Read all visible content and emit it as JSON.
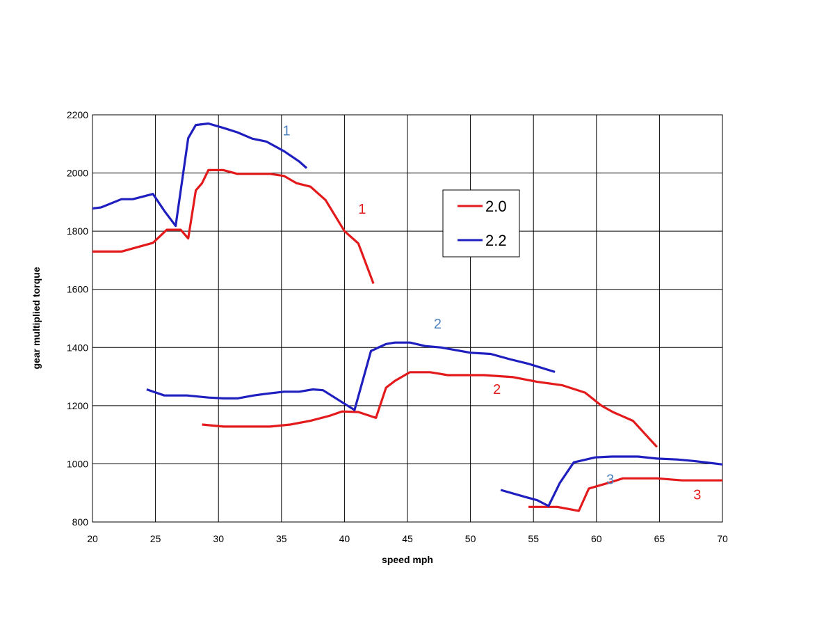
{
  "chart_data": {
    "type": "line",
    "xlabel": "speed mph",
    "ylabel": "gear multiplied torque",
    "xlim": [
      20,
      70
    ],
    "ylim": [
      800,
      2200
    ],
    "x_ticks": [
      "20",
      "25",
      "30",
      "35",
      "40",
      "45",
      "50",
      "55",
      "60",
      "65",
      "70"
    ],
    "y_ticks": [
      "800",
      "1000",
      "1200",
      "1400",
      "1600",
      "1800",
      "2000",
      "2200"
    ],
    "grid": true,
    "legend_placement": "center",
    "series": [
      {
        "name": "2.0",
        "color": "#e31a1c",
        "segments": [
          {
            "gear": "1",
            "points": [
              [
                20,
                1730
              ],
              [
                22.3,
                1730
              ],
              [
                24.8,
                1760
              ],
              [
                25.9,
                1805
              ],
              [
                27,
                1805
              ],
              [
                27.6,
                1775
              ],
              [
                28.2,
                1940
              ],
              [
                28.7,
                1965
              ],
              [
                29.2,
                2010
              ],
              [
                30.4,
                2010
              ],
              [
                31.5,
                1997
              ],
              [
                32.8,
                1997
              ],
              [
                34.1,
                1997
              ],
              [
                35.2,
                1990
              ],
              [
                36.2,
                1965
              ],
              [
                37.3,
                1953
              ],
              [
                38.5,
                1907
              ],
              [
                40,
                1800
              ],
              [
                41.1,
                1758
              ],
              [
                42.3,
                1620
              ]
            ]
          },
          {
            "gear": "2",
            "points": [
              [
                28.7,
                1135
              ],
              [
                30.4,
                1128
              ],
              [
                32,
                1128
              ],
              [
                34.1,
                1128
              ],
              [
                35.7,
                1135
              ],
              [
                37.3,
                1148
              ],
              [
                38.8,
                1165
              ],
              [
                39.8,
                1180
              ],
              [
                41.1,
                1178
              ],
              [
                42.5,
                1158
              ],
              [
                43.3,
                1262
              ],
              [
                44,
                1285
              ],
              [
                45.2,
                1315
              ],
              [
                46.8,
                1315
              ],
              [
                48.2,
                1305
              ],
              [
                51.1,
                1305
              ],
              [
                53.4,
                1298
              ],
              [
                55.3,
                1282
              ],
              [
                57.3,
                1270
              ],
              [
                59.1,
                1245
              ],
              [
                60.4,
                1200
              ],
              [
                61.3,
                1178
              ],
              [
                62.9,
                1148
              ],
              [
                64.8,
                1058
              ]
            ]
          },
          {
            "gear": "3",
            "points": [
              [
                54.6,
                852
              ],
              [
                56.9,
                852
              ],
              [
                58.6,
                838
              ],
              [
                59.4,
                915
              ],
              [
                61,
                935
              ],
              [
                62.1,
                950
              ],
              [
                64.8,
                950
              ],
              [
                66.8,
                943
              ],
              [
                70,
                943
              ]
            ]
          }
        ]
      },
      {
        "name": "2.2",
        "color": "#1f1fbf",
        "segments": [
          {
            "gear": "1",
            "points": [
              [
                20,
                1878
              ],
              [
                20.7,
                1882
              ],
              [
                22.3,
                1910
              ],
              [
                23.2,
                1910
              ],
              [
                24.8,
                1928
              ],
              [
                25.7,
                1870
              ],
              [
                26.6,
                1818
              ],
              [
                27.6,
                2120
              ],
              [
                28.2,
                2165
              ],
              [
                29.2,
                2170
              ],
              [
                30.4,
                2155
              ],
              [
                31.5,
                2140
              ],
              [
                32.7,
                2118
              ],
              [
                33.8,
                2108
              ],
              [
                35.2,
                2075
              ],
              [
                36.4,
                2040
              ],
              [
                37,
                2017
              ]
            ]
          },
          {
            "gear": "2",
            "points": [
              [
                24.3,
                1256
              ],
              [
                25.7,
                1235
              ],
              [
                27.5,
                1235
              ],
              [
                29.2,
                1228
              ],
              [
                30.4,
                1225
              ],
              [
                31.5,
                1225
              ],
              [
                32.8,
                1235
              ],
              [
                34,
                1242
              ],
              [
                35.2,
                1248
              ],
              [
                36.4,
                1248
              ],
              [
                37.5,
                1256
              ],
              [
                38.3,
                1253
              ],
              [
                39.8,
                1212
              ],
              [
                40.8,
                1185
              ],
              [
                42.1,
                1388
              ],
              [
                42.8,
                1402
              ],
              [
                43.3,
                1412
              ],
              [
                44,
                1417
              ],
              [
                45.2,
                1417
              ],
              [
                46.4,
                1405
              ],
              [
                47.7,
                1400
              ],
              [
                50,
                1382
              ],
              [
                51.6,
                1378
              ],
              [
                53.1,
                1360
              ],
              [
                54.6,
                1344
              ],
              [
                56.7,
                1316
              ]
            ]
          },
          {
            "gear": "3",
            "points": [
              [
                52.4,
                910
              ],
              [
                54.6,
                883
              ],
              [
                55.3,
                875
              ],
              [
                56.2,
                855
              ],
              [
                57.1,
                935
              ],
              [
                58.2,
                1005
              ],
              [
                59.9,
                1022
              ],
              [
                61.2,
                1025
              ],
              [
                63.3,
                1025
              ],
              [
                64.8,
                1018
              ],
              [
                66.4,
                1015
              ],
              [
                67.7,
                1010
              ],
              [
                70,
                998
              ]
            ]
          }
        ]
      }
    ],
    "annotations": [
      {
        "text": "1",
        "color": "#4f81bd",
        "x": 35.4,
        "y": 2130
      },
      {
        "text": "1",
        "color": "#e31a1c",
        "x": 41.4,
        "y": 1860
      },
      {
        "text": "2",
        "color": "#4f81bd",
        "x": 47.4,
        "y": 1465
      },
      {
        "text": "2",
        "color": "#e31a1c",
        "x": 52.1,
        "y": 1240
      },
      {
        "text": "3",
        "color": "#4f81bd",
        "x": 61.1,
        "y": 930
      },
      {
        "text": "3",
        "color": "#e31a1c",
        "x": 68,
        "y": 878
      }
    ]
  }
}
